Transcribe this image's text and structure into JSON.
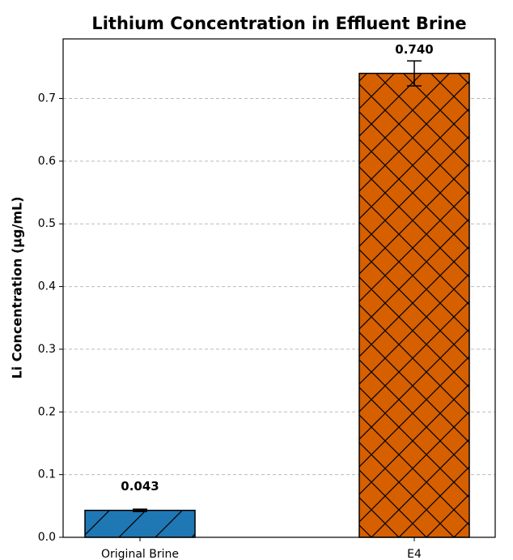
{
  "chart_data": {
    "type": "bar",
    "title": "Lithium Concentration in Effluent Brine",
    "y_label": "Li Concentration (μg/mL)",
    "categories": [
      "Original Brine",
      "E4"
    ],
    "values": [
      0.043,
      0.74
    ],
    "value_labels": [
      "0.043",
      "0.740"
    ],
    "errors": [
      0.002,
      0.02
    ],
    "colors": [
      "#1f77b4",
      "#d65f00"
    ],
    "hatches": [
      "/",
      "x"
    ],
    "ylim": [
      0,
      0.795
    ],
    "yticks": [
      {
        "value": 0,
        "label": "0.0"
      },
      0.1,
      0.2,
      0.3,
      0.4,
      0.5,
      0.6,
      0.7
    ],
    "grid": true
  }
}
